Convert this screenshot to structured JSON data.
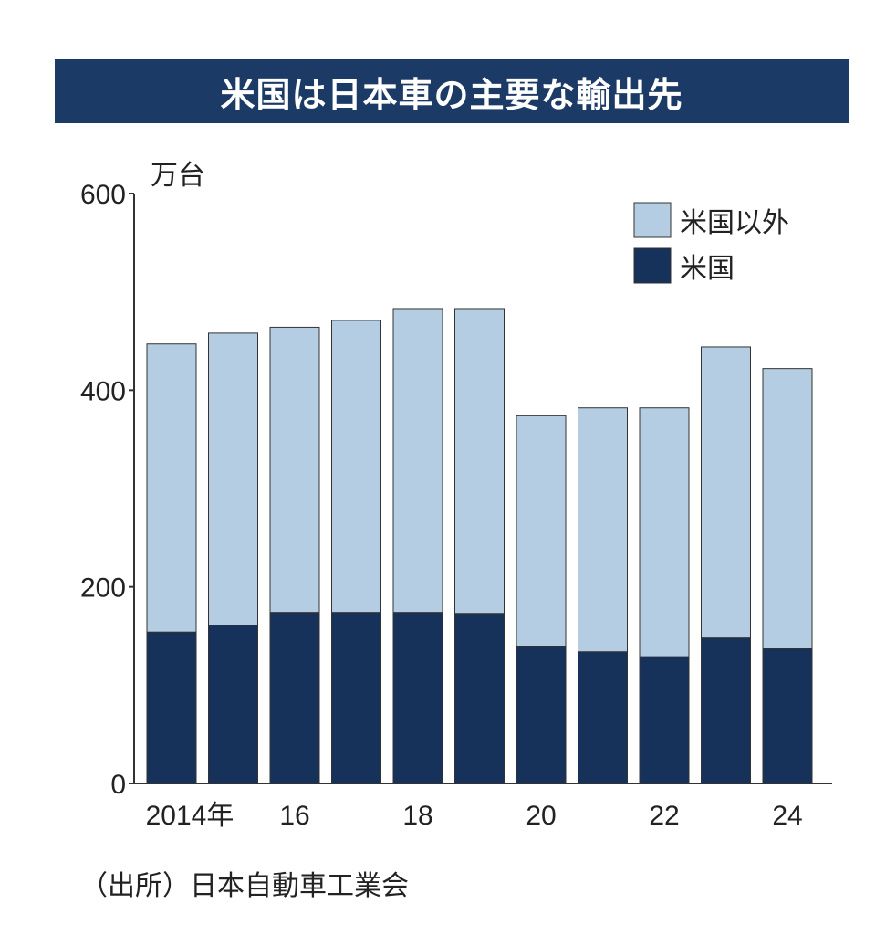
{
  "title": "米国は日本車の主要な輸出先",
  "source": "（出所）日本自動車工業会",
  "colors": {
    "title_bg": "#1b3a66",
    "us": "#17325a",
    "non_us": "#b5cde2"
  },
  "chart_data": {
    "type": "bar",
    "stacked": true,
    "title": "米国は日本車の主要な輸出先",
    "ylabel": "万台",
    "xlabel": "",
    "ylim": [
      0,
      600
    ],
    "yticks": [
      0,
      200,
      400,
      600
    ],
    "categories": [
      "2014",
      "2015",
      "2016",
      "2017",
      "2018",
      "2019",
      "2020",
      "2021",
      "2022",
      "2023",
      "2024"
    ],
    "xtick_labels": [
      {
        "category": "2014",
        "label": "2014年"
      },
      {
        "category": "2016",
        "label": "16"
      },
      {
        "category": "2018",
        "label": "18"
      },
      {
        "category": "2020",
        "label": "20"
      },
      {
        "category": "2022",
        "label": "22"
      },
      {
        "category": "2024",
        "label": "24"
      }
    ],
    "legend_position": "top-right",
    "grid": false,
    "series": [
      {
        "name": "米国",
        "color": "#17325a",
        "values": [
          154,
          161,
          174,
          174,
          174,
          173,
          139,
          134,
          129,
          148,
          137
        ]
      },
      {
        "name": "米国以外",
        "color": "#b5cde2",
        "values": [
          293,
          297,
          290,
          297,
          309,
          310,
          235,
          248,
          253,
          296,
          285
        ]
      }
    ]
  }
}
